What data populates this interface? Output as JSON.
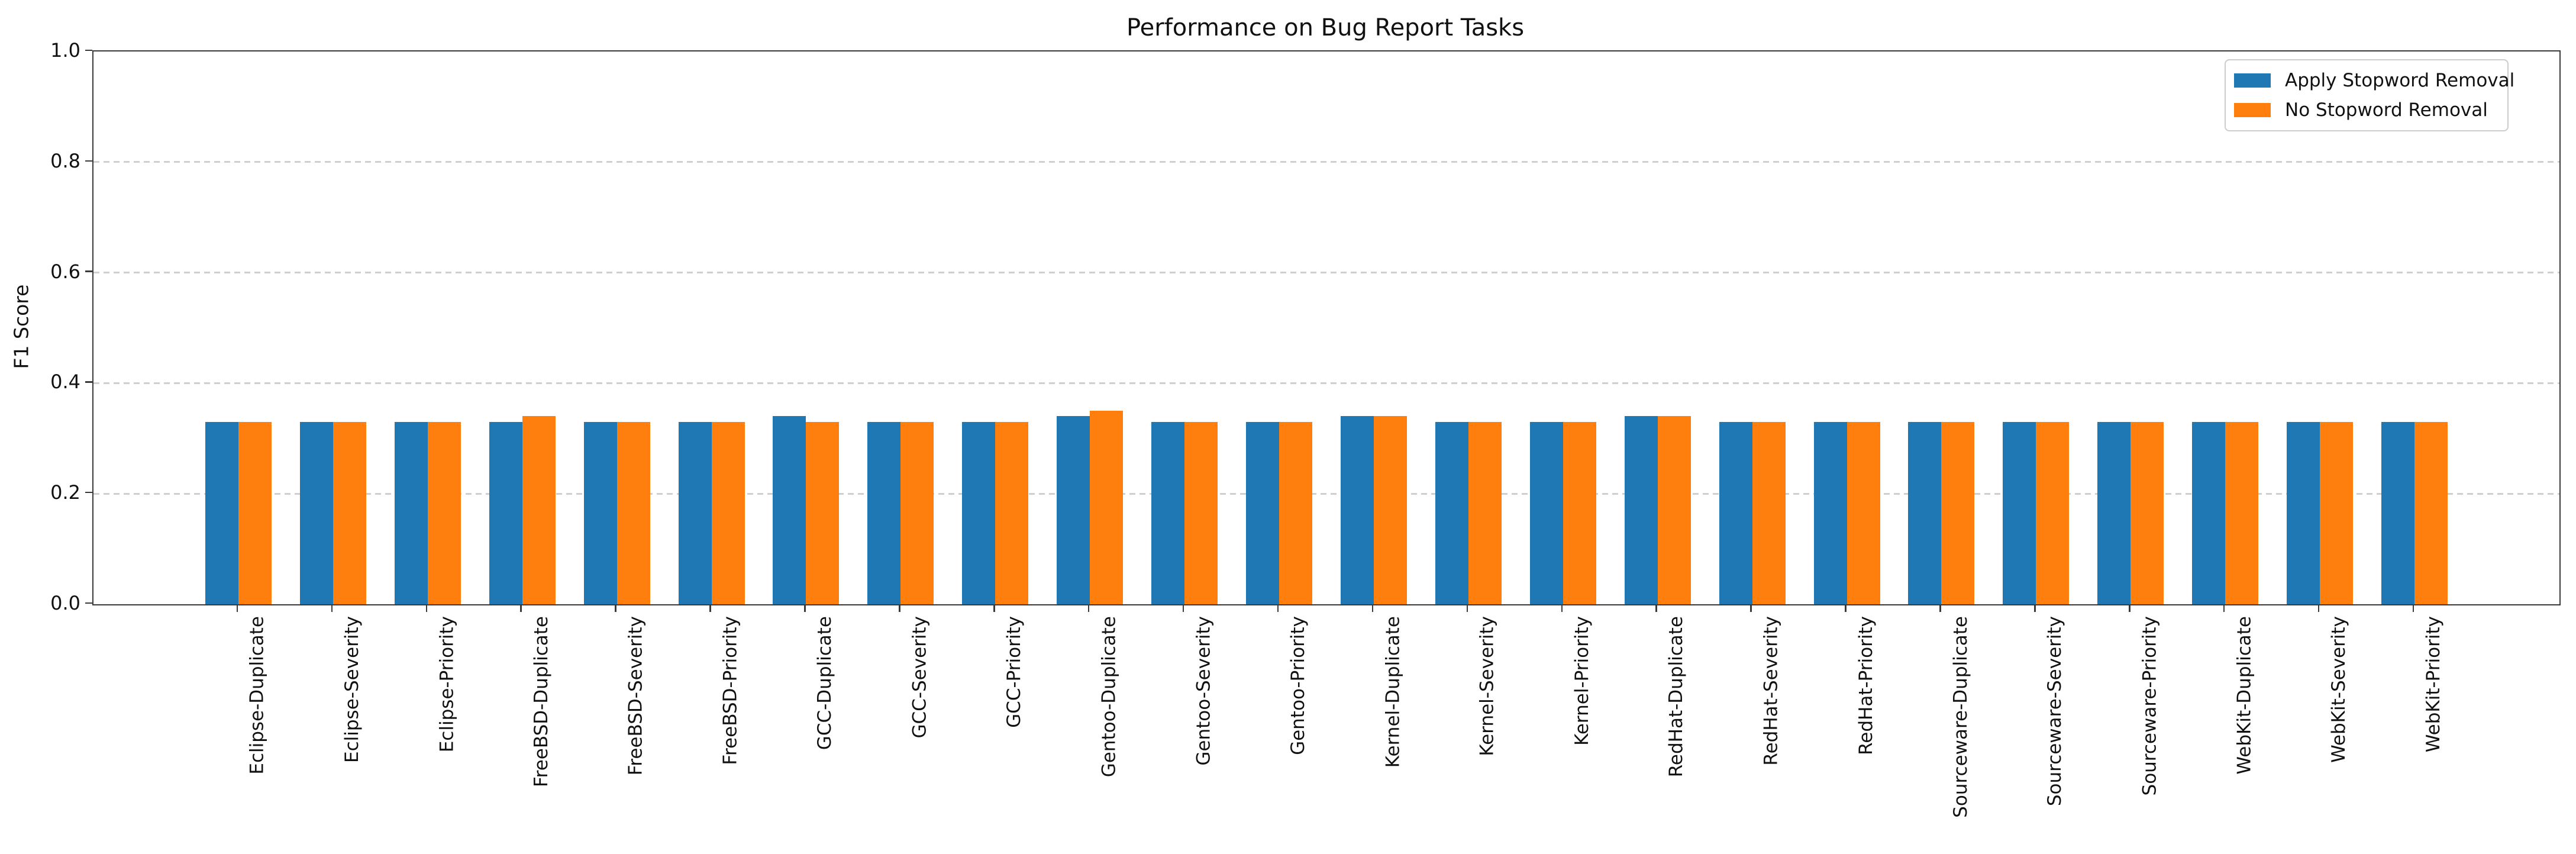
{
  "figure": {
    "background": "#ffffff"
  },
  "chart_data": {
    "type": "bar",
    "title": "Performance on Bug Report Tasks",
    "xlabel": "",
    "ylabel": "F1 Score",
    "ylim": [
      0.0,
      1.0
    ],
    "yticks": [
      0.0,
      0.2,
      0.4,
      0.6,
      0.8,
      1.0
    ],
    "ytick_labels": [
      "0.0",
      "0.2",
      "0.4",
      "0.6",
      "0.8",
      "1.0"
    ],
    "grid": "horizontal dashed",
    "grid_color": "#cfcfcf",
    "legend_position": "upper right",
    "categories": [
      "Eclipse-Duplicate",
      "Eclipse-Severity",
      "Eclipse-Priority",
      "FreeBSD-Duplicate",
      "FreeBSD-Severity",
      "FreeBSD-Priority",
      "GCC-Duplicate",
      "GCC-Severity",
      "GCC-Priority",
      "Gentoo-Duplicate",
      "Gentoo-Severity",
      "Gentoo-Priority",
      "Kernel-Duplicate",
      "Kernel-Severity",
      "Kernel-Priority",
      "RedHat-Duplicate",
      "RedHat-Severity",
      "RedHat-Priority",
      "Sourceware-Duplicate",
      "Sourceware-Severity",
      "Sourceware-Priority",
      "WebKit-Duplicate",
      "WebKit-Severity",
      "WebKit-Priority"
    ],
    "series": [
      {
        "name": "Apply Stopword Removal",
        "color": "#1f77b4",
        "values": [
          0.33,
          0.33,
          0.33,
          0.33,
          0.33,
          0.33,
          0.34,
          0.33,
          0.33,
          0.34,
          0.33,
          0.33,
          0.34,
          0.33,
          0.33,
          0.34,
          0.33,
          0.33,
          0.33,
          0.33,
          0.33,
          0.33,
          0.33,
          0.33
        ]
      },
      {
        "name": "No Stopword Removal",
        "color": "#ff7f0e",
        "values": [
          0.33,
          0.33,
          0.33,
          0.34,
          0.33,
          0.33,
          0.33,
          0.33,
          0.33,
          0.35,
          0.33,
          0.33,
          0.34,
          0.33,
          0.33,
          0.34,
          0.33,
          0.33,
          0.33,
          0.33,
          0.33,
          0.33,
          0.33,
          0.33
        ]
      }
    ]
  }
}
